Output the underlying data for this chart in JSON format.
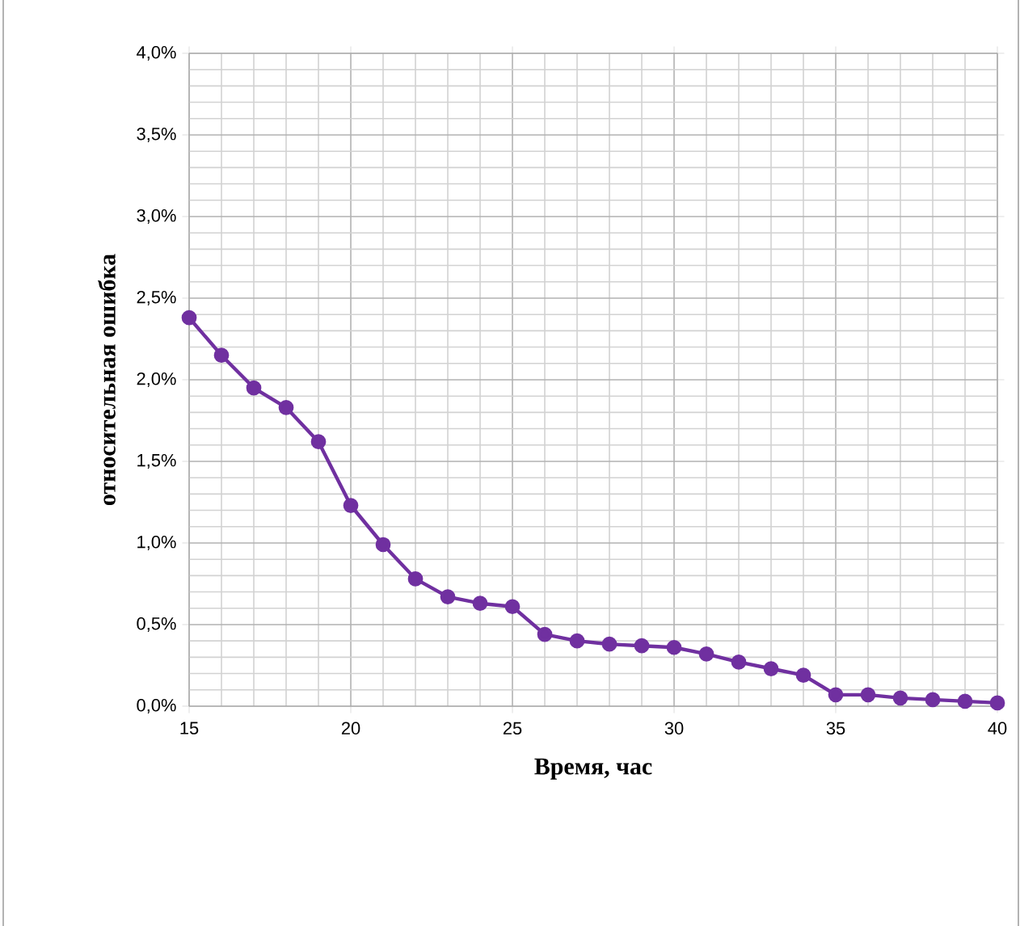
{
  "chart_data": {
    "type": "line",
    "xlabel": "Время, час",
    "ylabel": "относительная   ошибка",
    "x": [
      15,
      16,
      17,
      18,
      19,
      20,
      21,
      22,
      23,
      24,
      25,
      26,
      27,
      28,
      29,
      30,
      31,
      32,
      33,
      34,
      35,
      36,
      37,
      38,
      39,
      40
    ],
    "series": [
      {
        "color": "#7030a0",
        "values": [
          2.38,
          2.15,
          1.95,
          1.83,
          1.62,
          1.23,
          0.99,
          0.78,
          0.67,
          0.63,
          0.61,
          0.44,
          0.4,
          0.38,
          0.37,
          0.36,
          0.32,
          0.27,
          0.23,
          0.19,
          0.07,
          0.07,
          0.05,
          0.04,
          0.03,
          0.02
        ]
      }
    ],
    "xlim": [
      15,
      40
    ],
    "xticks": [
      15,
      20,
      25,
      30,
      35,
      40
    ],
    "ylim": [
      0,
      4
    ],
    "yticks": [
      {
        "value": 0,
        "label": "0,0%"
      },
      {
        "value": 0.5,
        "label": "0,5%"
      },
      {
        "value": 1,
        "label": "1,0%"
      },
      {
        "value": 1.5,
        "label": "1,5%"
      },
      {
        "value": 2,
        "label": "2,0%"
      },
      {
        "value": 2.5,
        "label": "2,5%"
      },
      {
        "value": 3,
        "label": "3,0%"
      },
      {
        "value": 3.5,
        "label": "3,5%"
      },
      {
        "value": 4,
        "label": "4,0%"
      }
    ],
    "grid": true,
    "marker": "circle",
    "line_style": "solid"
  }
}
